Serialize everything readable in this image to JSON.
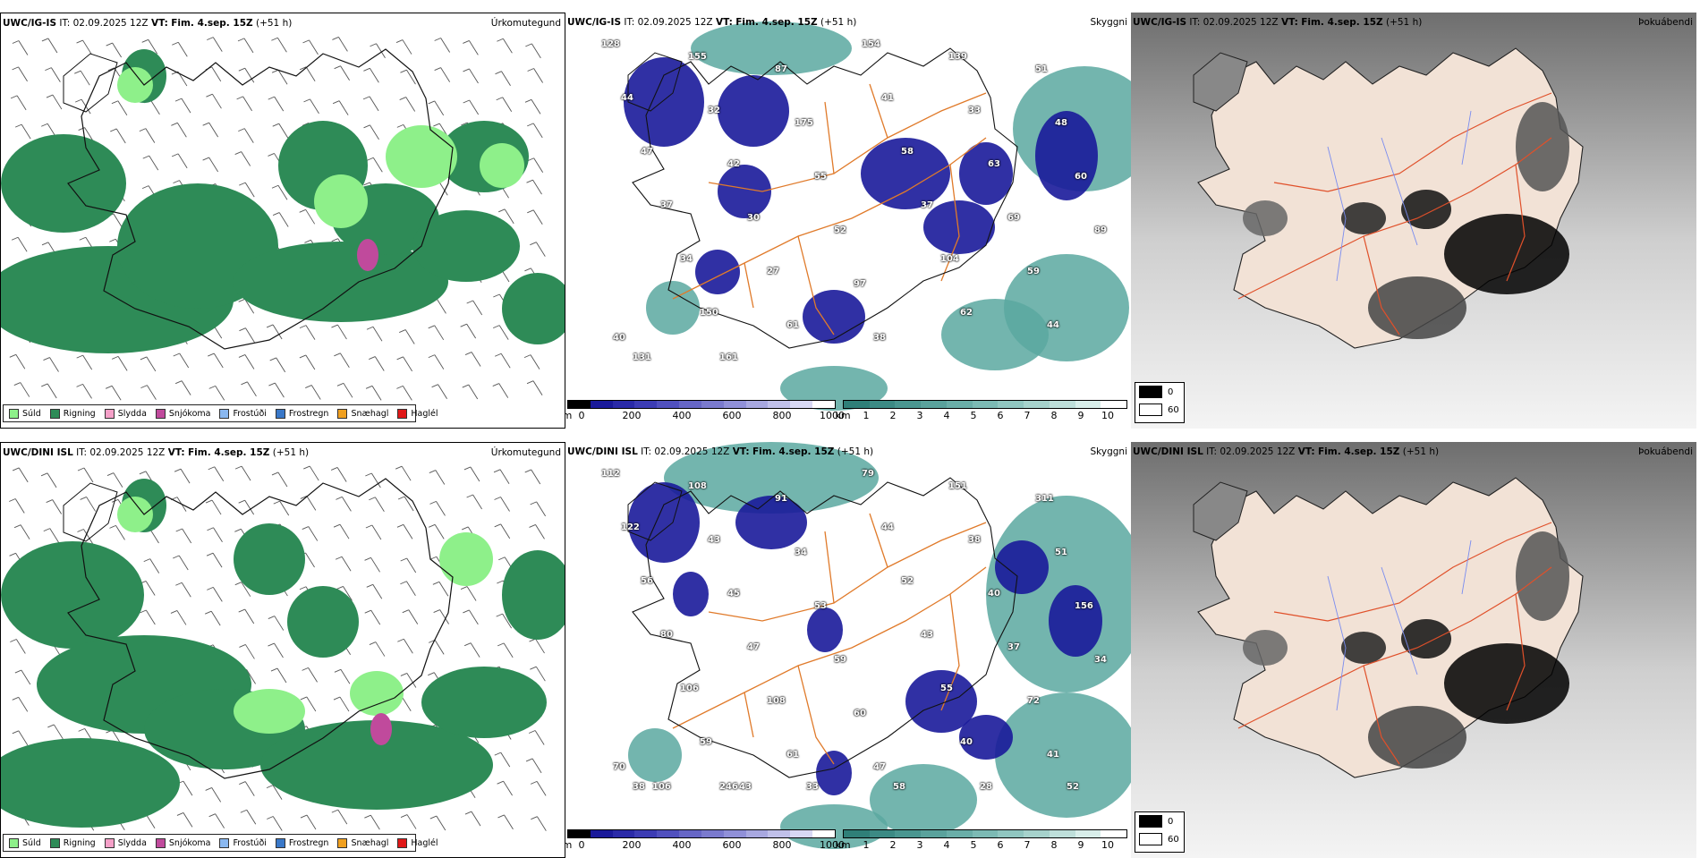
{
  "colors": {
    "sudd": "#8ef08a",
    "rigning": "#2e8b57",
    "slydda": "#f5a0c8",
    "snjokoma": "#c04a9c",
    "frostudi": "#8ab8f0",
    "frostregn": "#3a78c8",
    "snjohagl": "#f0a020",
    "haglel": "#e01818",
    "ceiling_dark": "#1a1a9a",
    "vis_teal": "#5aa8a0",
    "roads": "#e07a2a",
    "land_fog": "#f2e2d6"
  },
  "rows": [
    {
      "panels": [
        {
          "model": "UWC/IG-IS",
          "it": "IT: 02.09.2025 12Z",
          "vt_label": "VT:",
          "vt": "Fim. 4.sep. 15Z",
          "lead": "(+51 h)",
          "kind": "Úrkomutegund",
          "legend": [
            "Súld",
            "Rigning",
            "Slydda",
            "Snjókoma",
            "Frostúði",
            "Frostregn",
            "Snæhagl",
            "Haglél"
          ]
        },
        {
          "model": "UWC/IG-IS",
          "it": "IT: 02.09.2025 12Z",
          "vt_label": "VT:",
          "vt": "Fim. 4.sep. 15Z",
          "lead": "(+51 h)",
          "kind": "Skyggni",
          "ceiling_unit": "m",
          "ceiling_ticks": [
            "0",
            "200",
            "400",
            "600",
            "800",
            "1000"
          ],
          "vis_unit": "km",
          "vis_ticks": [
            "1",
            "2",
            "3",
            "4",
            "5",
            "6",
            "7",
            "8",
            "9",
            "10"
          ],
          "values": [
            "128",
            "155",
            "87",
            "154",
            "139",
            "51",
            "44",
            "32",
            "175",
            "41",
            "33",
            "48",
            "47",
            "42",
            "55",
            "58",
            "63",
            "60",
            "37",
            "30",
            "52",
            "37",
            "69",
            "89",
            "34",
            "27",
            "97",
            "104",
            "59",
            "40",
            "150",
            "61",
            "38",
            "62",
            "44",
            "131",
            "161"
          ]
        },
        {
          "model": "UWC/IG-IS",
          "it": "IT: 02.09.2025 12Z",
          "vt_label": "VT:",
          "vt": "Fim. 4.sep. 15Z",
          "lead": "(+51 h)",
          "kind": "Þokuábendi",
          "fog_keys": [
            "0",
            "60"
          ]
        }
      ]
    },
    {
      "panels": [
        {
          "model": "UWC/DINI ISL",
          "it": "IT: 02.09.2025 12Z",
          "vt_label": "VT:",
          "vt": "Fim. 4.sep. 15Z",
          "lead": "(+51 h)",
          "kind": "Úrkomutegund",
          "legend": [
            "Súld",
            "Rigning",
            "Slydda",
            "Snjókoma",
            "Frostúði",
            "Frostregn",
            "Snæhagl",
            "Haglél"
          ]
        },
        {
          "model": "UWC/DINI ISL",
          "it": "IT: 02.09.2025 12Z",
          "vt_label": "VT:",
          "vt": "Fim. 4.sep. 15Z",
          "lead": "(+51 h)",
          "kind": "Skyggni",
          "ceiling_unit": "m",
          "ceiling_ticks": [
            "0",
            "200",
            "400",
            "600",
            "800",
            "1000"
          ],
          "vis_unit": "km",
          "vis_ticks": [
            "1",
            "2",
            "3",
            "4",
            "5",
            "6",
            "7",
            "8",
            "9",
            "10"
          ],
          "values": [
            "112",
            "108",
            "91",
            "79",
            "151",
            "311",
            "122",
            "43",
            "34",
            "44",
            "38",
            "51",
            "56",
            "45",
            "53",
            "52",
            "40",
            "156",
            "80",
            "47",
            "59",
            "43",
            "37",
            "34",
            "106",
            "108",
            "60",
            "55",
            "72",
            "70",
            "59",
            "61",
            "47",
            "40",
            "41",
            "38",
            "246",
            "33",
            "58",
            "28",
            "52",
            "106",
            "43"
          ]
        },
        {
          "model": "UWC/DINI ISL",
          "it": "IT: 02.09.2025 12Z",
          "vt_label": "VT:",
          "vt": "Fim. 4.sep. 15Z",
          "lead": "(+51 h)",
          "kind": "Þokuábendi",
          "fog_keys": [
            "0",
            "60"
          ]
        }
      ]
    }
  ]
}
